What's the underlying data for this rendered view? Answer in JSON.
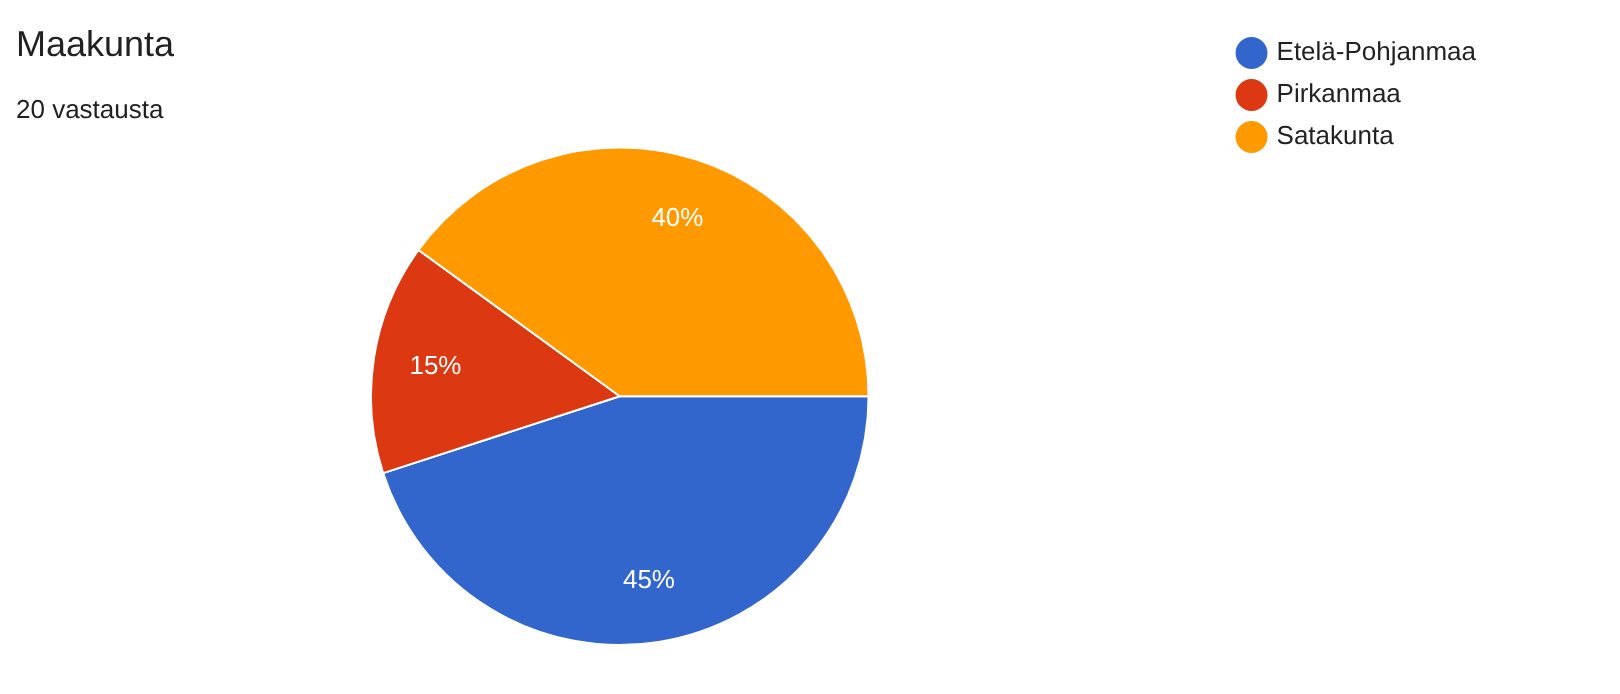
{
  "chart_data": {
    "type": "pie",
    "title": "Maakunta",
    "subtitle": "20 vastausta",
    "categories": [
      "Etelä-Pohjanmaa",
      "Pirkanmaa",
      "Satakunta"
    ],
    "values": [
      45,
      15,
      40
    ],
    "colors": [
      "#3366cc",
      "#dc3912",
      "#ff9900"
    ],
    "value_labels": [
      "45%",
      "15%",
      "40%"
    ],
    "legend": "top right"
  }
}
